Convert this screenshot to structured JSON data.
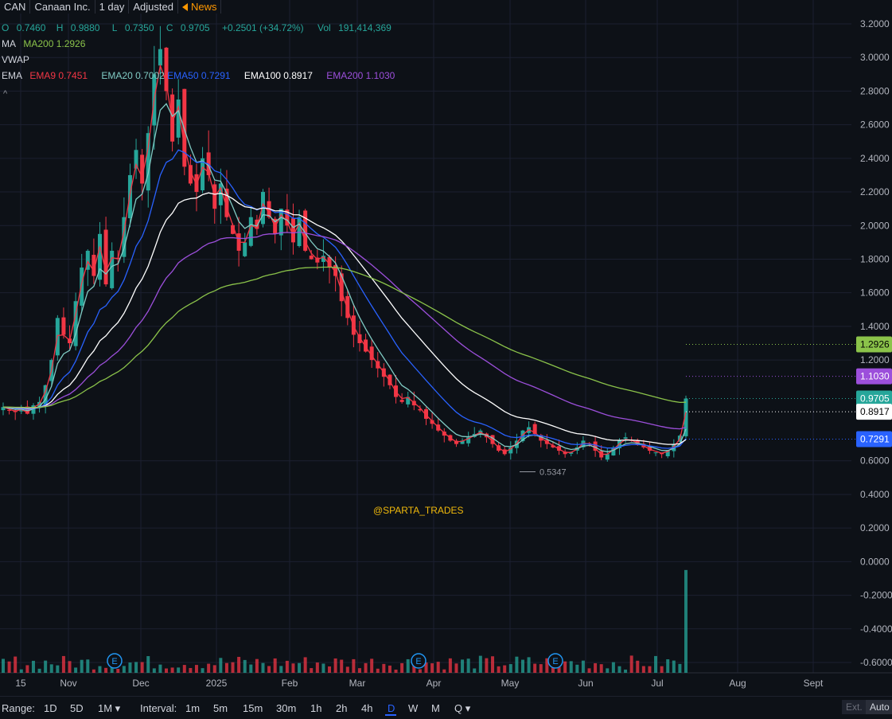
{
  "header": {
    "symbol": "CAN",
    "company": "Canaan Inc.",
    "interval": "1 day",
    "adjust": "Adjusted",
    "news": "News"
  },
  "ohlc": {
    "o_label": "O",
    "o": "0.7460",
    "h_label": "H",
    "h": "0.9880",
    "l_label": "L",
    "l": "0.7350",
    "c_label": "C",
    "c": "0.9705",
    "change": "+0.2501 (+34.72%)",
    "vol_label": "Vol",
    "vol": "191,414,369"
  },
  "indicators": {
    "ma_title": "MA",
    "ma200": "MA200 1.2926",
    "vwap": "VWAP",
    "ema_title": "EMA",
    "ema9": "EMA9 0.7451",
    "ema20": "EMA20 0.7002",
    "ema50": "EMA50 0.7291",
    "ema100": "EMA100 0.8917",
    "ema200": "EMA200 1.1030"
  },
  "watermark": "@SPARTA_TRADES",
  "chart_data": {
    "type": "candlestick",
    "price_axis_ticks": [
      "3.2000",
      "3.0000",
      "2.8000",
      "2.6000",
      "2.4000",
      "2.2000",
      "2.0000",
      "1.8000",
      "1.6000",
      "1.4000",
      "1.2000",
      "0.6000",
      "0.4000",
      "0.2000",
      "0.0000",
      "-0.2000",
      "-0.4000",
      "-0.6000"
    ],
    "ylim": [
      -0.65,
      3.25
    ],
    "time_axis_ticks": [
      "15",
      "Nov",
      "Dec",
      "2025",
      "Feb",
      "Mar",
      "Apr",
      "May",
      "Jun",
      "Jul",
      "Aug",
      "Sept"
    ],
    "price_labels": [
      {
        "name": "MA200",
        "value": "1.2926",
        "color": "#8bc34a"
      },
      {
        "name": "EMA200",
        "value": "1.1030",
        "color": "#9c4fdb"
      },
      {
        "name": "Close",
        "value": "0.9705",
        "color": "#26a69a"
      },
      {
        "name": "EMA100",
        "value": "0.8917",
        "color": "#ffffff"
      },
      {
        "name": "EMA50",
        "value": "0.7291",
        "color": "#2962ff"
      }
    ],
    "low_marker": "0.5347",
    "earnings_marker": "E",
    "approx_closes": [
      0.92,
      0.9,
      0.89,
      0.91,
      0.88,
      0.93,
      0.95,
      1.05,
      1.2,
      1.45,
      1.35,
      1.3,
      1.55,
      1.75,
      1.85,
      1.7,
      1.95,
      1.65,
      1.85,
      1.8,
      2.05,
      2.3,
      2.45,
      2.25,
      2.55,
      2.9,
      3.05,
      2.8,
      2.5,
      2.75,
      2.35,
      2.25,
      2.2,
      2.4,
      2.3,
      2.1,
      2.25,
      2.05,
      1.95,
      1.85,
      1.9,
      2.05,
      1.98,
      2.2,
      2.05,
      1.95,
      2.1,
      2.0,
      1.9,
      2.05,
      1.85,
      1.8,
      1.78,
      1.82,
      1.75,
      1.7,
      1.55,
      1.45,
      1.35,
      1.3,
      1.25,
      1.2,
      1.15,
      1.1,
      1.05,
      0.98,
      0.95,
      0.98,
      0.93,
      0.9,
      0.85,
      0.82,
      0.78,
      0.75,
      0.72,
      0.7,
      0.72,
      0.74,
      0.76,
      0.78,
      0.74,
      0.7,
      0.66,
      0.64,
      0.68,
      0.72,
      0.78,
      0.8,
      0.76,
      0.72,
      0.7,
      0.68,
      0.66,
      0.64,
      0.65,
      0.68,
      0.72,
      0.7,
      0.66,
      0.62,
      0.64,
      0.68,
      0.72,
      0.74,
      0.72,
      0.7,
      0.68,
      0.66,
      0.65,
      0.64,
      0.66,
      0.7,
      0.75,
      0.9705
    ],
    "ema_colors": {
      "ema9": "#f23645",
      "ema20": "#80cbc4",
      "ema50": "#2962ff",
      "ema100": "#ffffff",
      "ema200": "#9c4fdb",
      "ma200": "#8bc34a"
    },
    "up_color": "#26a69a",
    "down_color": "#f23645"
  },
  "bottom_bar": {
    "range_label": "Range:",
    "ranges": [
      "1D",
      "5D",
      "1M ▾"
    ],
    "interval_label": "Interval:",
    "intervals": [
      "1m",
      "5m",
      "15m",
      "30m",
      "1h",
      "2h",
      "4h",
      "D",
      "W",
      "M",
      "Q ▾"
    ],
    "active_interval": "D",
    "ext": "Ext.",
    "auto": "Auto"
  }
}
